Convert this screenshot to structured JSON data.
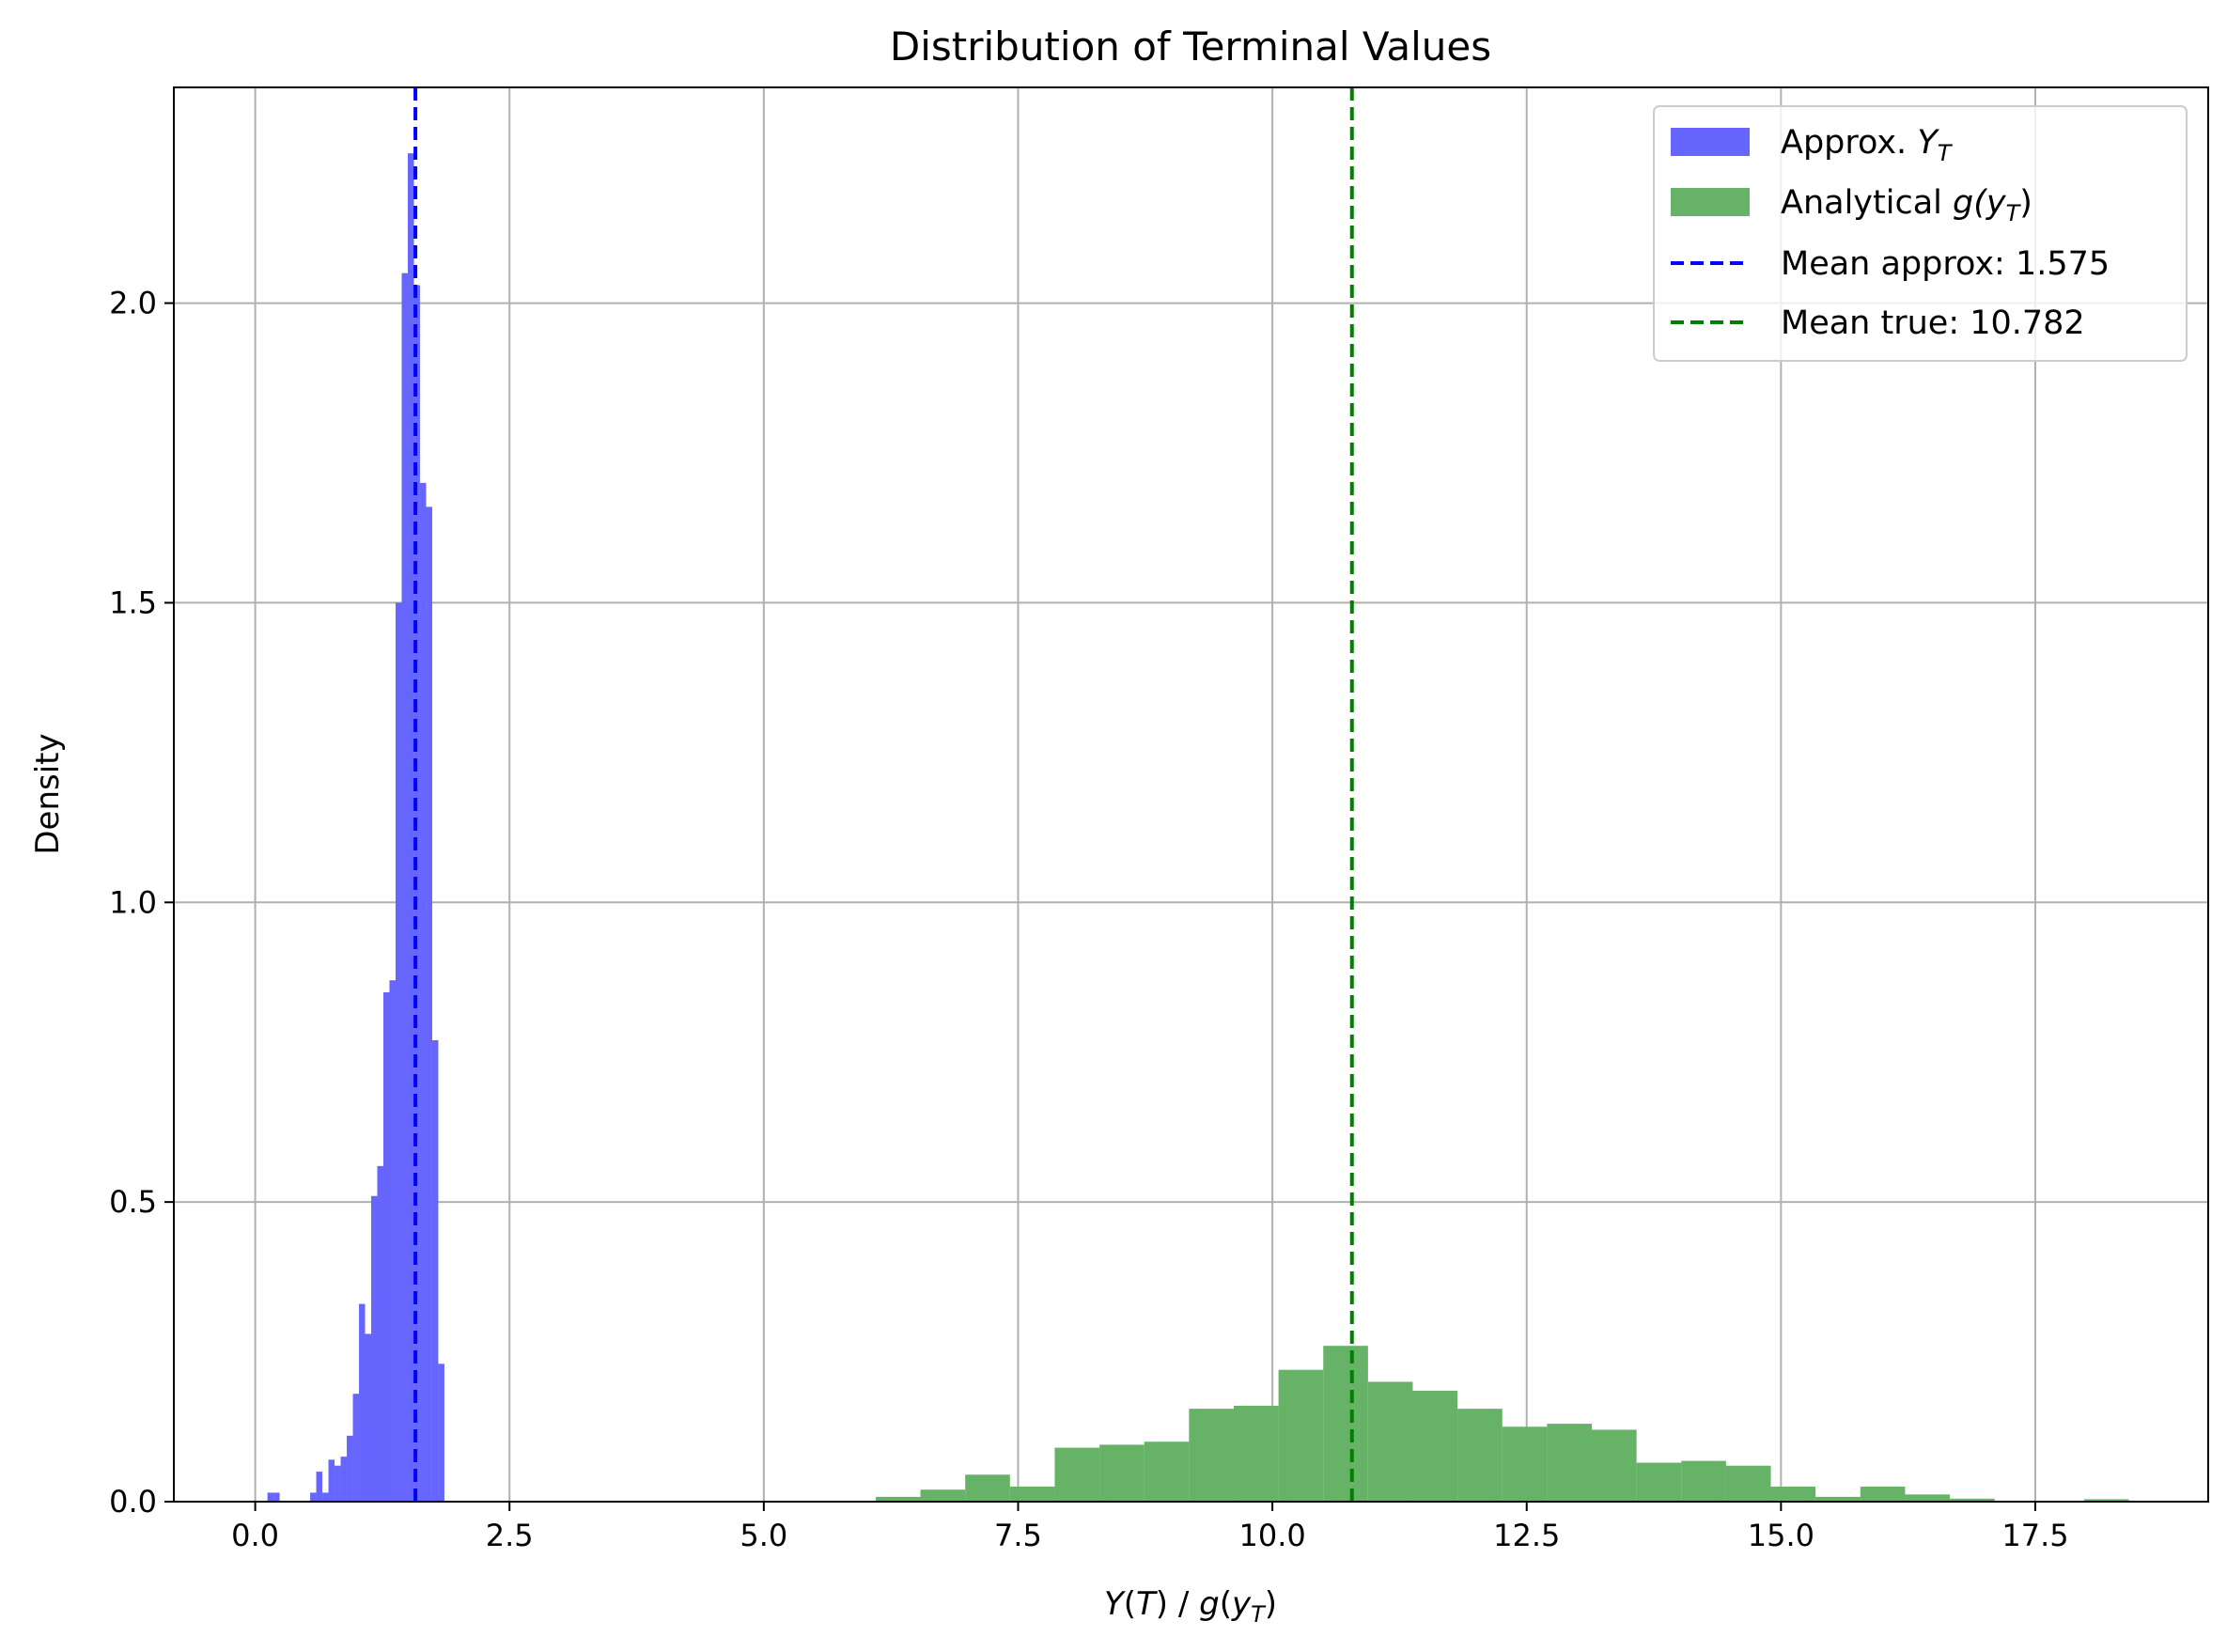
{
  "chart_data": {
    "type": "bar",
    "title": "Distribution of Terminal Values",
    "xlabel": "Y(T) / g(y_T)",
    "ylabel": "Density",
    "xlim": [
      -0.8,
      19.2
    ],
    "ylim": [
      0,
      2.36
    ],
    "xticks": [
      0.0,
      2.5,
      5.0,
      7.5,
      10.0,
      12.5,
      15.0,
      17.5
    ],
    "xtick_labels": [
      "0.0",
      "2.5",
      "5.0",
      "7.5",
      "10.0",
      "12.5",
      "15.0",
      "17.5"
    ],
    "yticks": [
      0.0,
      0.5,
      1.0,
      1.5,
      2.0
    ],
    "ytick_labels": [
      "0.0",
      "0.5",
      "1.0",
      "1.5",
      "2.0"
    ],
    "grid": true,
    "legend_position": "top-right",
    "series": [
      {
        "name": "Approx. Y_T",
        "kind": "histogram",
        "color": "#6666ff",
        "bin_edges": [
          0.12,
          0.18,
          0.24,
          0.3,
          0.36,
          0.42,
          0.48,
          0.54,
          0.6,
          0.66,
          0.72,
          0.78,
          0.84,
          0.9,
          0.96,
          1.02,
          1.08,
          1.14,
          1.2,
          1.26,
          1.32,
          1.38,
          1.44,
          1.5,
          1.56,
          1.62,
          1.68,
          1.74,
          1.8,
          1.86,
          1.92,
          1.98
        ],
        "values": [
          0.015,
          0.015,
          0.0,
          0.0,
          0.0,
          0.0,
          0.0,
          0.015,
          0.05,
          0.015,
          0.07,
          0.06,
          0.075,
          0.11,
          0.18,
          0.33,
          0.28,
          0.51,
          0.56,
          0.85,
          0.87,
          1.5,
          2.05,
          2.25,
          2.03,
          1.7,
          1.66,
          0.77,
          0.23,
          0.0,
          0.0
        ]
      },
      {
        "name": "Analytical g(y_T)",
        "kind": "histogram",
        "color": "#66b266",
        "bin_edges": [
          6.1,
          6.54,
          6.98,
          7.42,
          7.86,
          8.3,
          8.74,
          9.18,
          9.62,
          10.06,
          10.5,
          10.94,
          11.38,
          11.82,
          12.26,
          12.7,
          13.14,
          13.58,
          14.02,
          14.46,
          14.9,
          15.34,
          15.78,
          16.22,
          16.66,
          17.1,
          17.54,
          17.98,
          18.42
        ],
        "values": [
          0.008,
          0.02,
          0.045,
          0.025,
          0.09,
          0.095,
          0.1,
          0.155,
          0.16,
          0.22,
          0.26,
          0.2,
          0.185,
          0.155,
          0.125,
          0.13,
          0.12,
          0.065,
          0.068,
          0.06,
          0.025,
          0.008,
          0.025,
          0.012,
          0.005,
          0.0,
          0.0,
          0.004
        ]
      }
    ],
    "reference_lines": [
      {
        "name": "Mean approx: 1.575",
        "x": 1.575,
        "color": "#0000ff",
        "style": "dashed"
      },
      {
        "name": "Mean true: 10.782",
        "x": 10.782,
        "color": "#008000",
        "style": "dashed"
      }
    ],
    "legend": [
      {
        "label_main": "Approx. ",
        "label_var": "Y",
        "label_sub": "T",
        "kind": "patch",
        "color": "#6666ff"
      },
      {
        "label_main": "Analytical ",
        "label_var": "g(y",
        "label_sub": "T",
        "label_tail": ")",
        "kind": "patch",
        "color": "#66b266"
      },
      {
        "label_main": "Mean approx: 1.575",
        "kind": "line",
        "color": "#0000ff"
      },
      {
        "label_main": "Mean true: 10.782",
        "kind": "line",
        "color": "#008000"
      }
    ],
    "xlabel_parts": {
      "var1": "Y",
      "paren1": "(",
      "var2": "T",
      "mid": ") / ",
      "var3": "g",
      "paren2": "(",
      "var4": "y",
      "sub": "T",
      "close": ")"
    }
  }
}
